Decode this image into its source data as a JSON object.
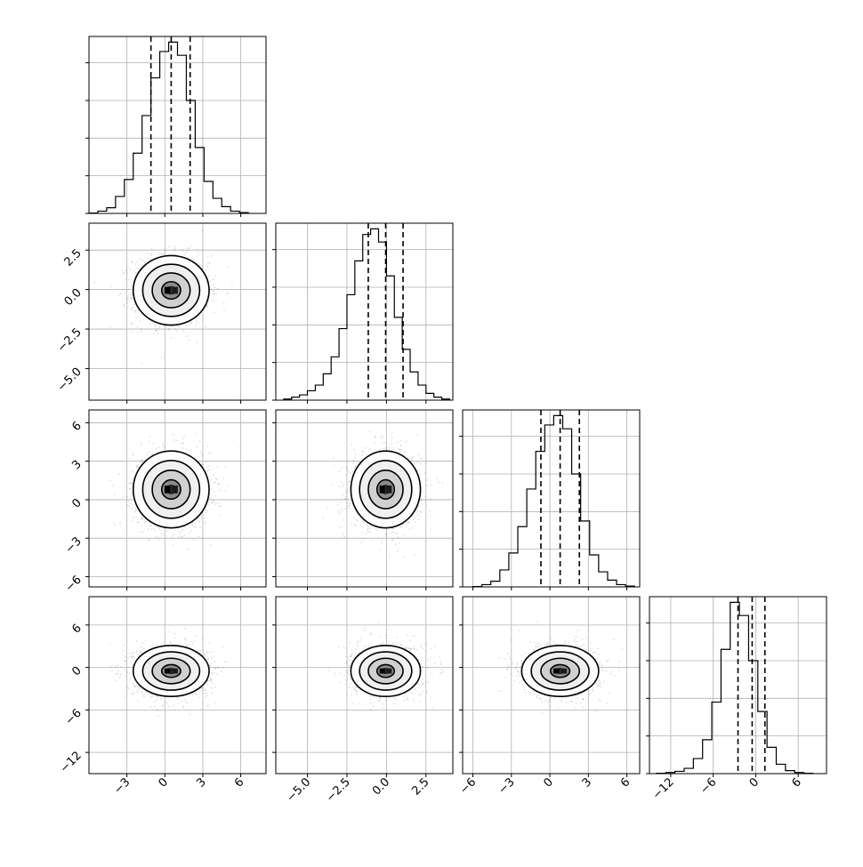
{
  "chart_data": {
    "type": "corner",
    "description_of_type": "corner plot: 1-D histograms on the diagonal, 2-D scatter/density with contours below the diagonal",
    "quantile_lines": [
      0.16,
      0.5,
      0.84
    ],
    "grid": true,
    "params": [
      {
        "range": [
          -6.0,
          8.0
        ],
        "ticks": [
          -3,
          0,
          3,
          6
        ],
        "tick_labels": [
          "−3",
          "0",
          "3",
          "6"
        ],
        "quantile_values": [
          -1.1,
          0.5,
          2.0
        ],
        "hist_bin_edges": [
          -6.0,
          -5.3,
          -4.6,
          -3.9,
          -3.2,
          -2.5,
          -1.8,
          -1.1,
          -0.4,
          0.3,
          1.0,
          1.7,
          2.4,
          3.1,
          3.8,
          4.5,
          5.2,
          5.9,
          6.6
        ],
        "hist_counts": [
          1,
          6,
          15,
          45,
          90,
          160,
          260,
          360,
          430,
          455,
          420,
          300,
          175,
          85,
          40,
          18,
          6,
          2
        ],
        "hist_ymax": 470
      },
      {
        "range": [
          -7.0,
          4.2
        ],
        "ticks": [
          -5.0,
          -2.5,
          0.0,
          2.5
        ],
        "tick_labels": [
          "−5.0",
          "−2.5",
          "0.0",
          "2.5"
        ],
        "quantile_values": [
          -1.15,
          -0.05,
          1.05
        ],
        "hist_bin_edges": [
          -6.5,
          -6.0,
          -5.5,
          -5.0,
          -4.5,
          -4.0,
          -3.5,
          -3.0,
          -2.5,
          -2.0,
          -1.5,
          -1.0,
          -0.5,
          0.0,
          0.5,
          1.0,
          1.5,
          2.0,
          2.5,
          3.0,
          3.5,
          4.0
        ],
        "hist_counts": [
          3,
          8,
          14,
          25,
          40,
          70,
          115,
          190,
          280,
          370,
          440,
          455,
          420,
          330,
          220,
          135,
          75,
          40,
          18,
          8,
          3
        ],
        "hist_ymax": 470
      },
      {
        "range": [
          -6.8,
          7.0
        ],
        "ticks": [
          -6,
          -3,
          0,
          3,
          6
        ],
        "tick_labels": [
          "−6",
          "−3",
          "0",
          "3",
          "6"
        ],
        "quantile_values": [
          -0.7,
          0.8,
          2.3
        ],
        "hist_bin_edges": [
          -6.0,
          -5.3,
          -4.6,
          -3.9,
          -3.2,
          -2.5,
          -1.8,
          -1.1,
          -0.4,
          0.3,
          1.0,
          1.7,
          2.4,
          3.1,
          3.8,
          4.5,
          5.2,
          5.9,
          6.6
        ],
        "hist_counts": [
          1,
          6,
          15,
          45,
          90,
          160,
          260,
          360,
          430,
          455,
          420,
          300,
          175,
          85,
          40,
          18,
          6,
          2
        ],
        "hist_ymax": 470
      },
      {
        "range": [
          -15.0,
          10.0
        ],
        "ticks": [
          -12,
          -6,
          0,
          6
        ],
        "tick_labels": [
          "−12",
          "−6",
          "0",
          "6"
        ],
        "quantile_values": [
          -2.5,
          -0.5,
          1.3
        ],
        "hist_bin_edges": [
          -14.0,
          -12.7,
          -11.4,
          -10.1,
          -8.8,
          -7.5,
          -6.2,
          -4.9,
          -3.6,
          -2.3,
          -1.0,
          0.3,
          1.6,
          2.9,
          4.2,
          5.5,
          6.8,
          8.1
        ],
        "hist_counts": [
          1,
          3,
          6,
          14,
          40,
          90,
          190,
          330,
          455,
          420,
          300,
          165,
          70,
          25,
          8,
          3,
          1
        ],
        "hist_ymax": 470
      }
    ],
    "hist_ticks": [
      0,
      100,
      200,
      300,
      400
    ],
    "pairs": [
      {
        "x": 0,
        "y": 1,
        "center": [
          0.5,
          -0.05
        ],
        "sx": 1.5,
        "sy": 1.1
      },
      {
        "x": 0,
        "y": 2,
        "center": [
          0.5,
          0.8
        ],
        "sx": 1.5,
        "sy": 1.5
      },
      {
        "x": 1,
        "y": 2,
        "center": [
          -0.05,
          0.8
        ],
        "sx": 1.1,
        "sy": 1.5
      },
      {
        "x": 0,
        "y": 3,
        "center": [
          0.5,
          -0.5
        ],
        "sx": 1.5,
        "sy": 1.8
      },
      {
        "x": 1,
        "y": 3,
        "center": [
          -0.05,
          -0.5
        ],
        "sx": 1.1,
        "sy": 1.8
      },
      {
        "x": 2,
        "y": 3,
        "center": [
          0.8,
          -0.5
        ],
        "sx": 1.5,
        "sy": 1.8
      }
    ],
    "contour_levels_sigma": [
      0.5,
      1.0,
      1.5,
      2.0
    ]
  }
}
